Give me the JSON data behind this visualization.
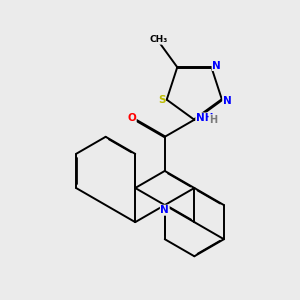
{
  "background_color": "#ebebeb",
  "bond_color": "#000000",
  "atom_colors": {
    "N": "#0000ff",
    "O": "#ff0000",
    "S": "#bbbb00",
    "C": "#000000",
    "H": "#7a7a7a"
  },
  "bond_width": 1.4,
  "dbo": 0.018,
  "figsize": [
    3.0,
    3.0
  ],
  "dpi": 100
}
